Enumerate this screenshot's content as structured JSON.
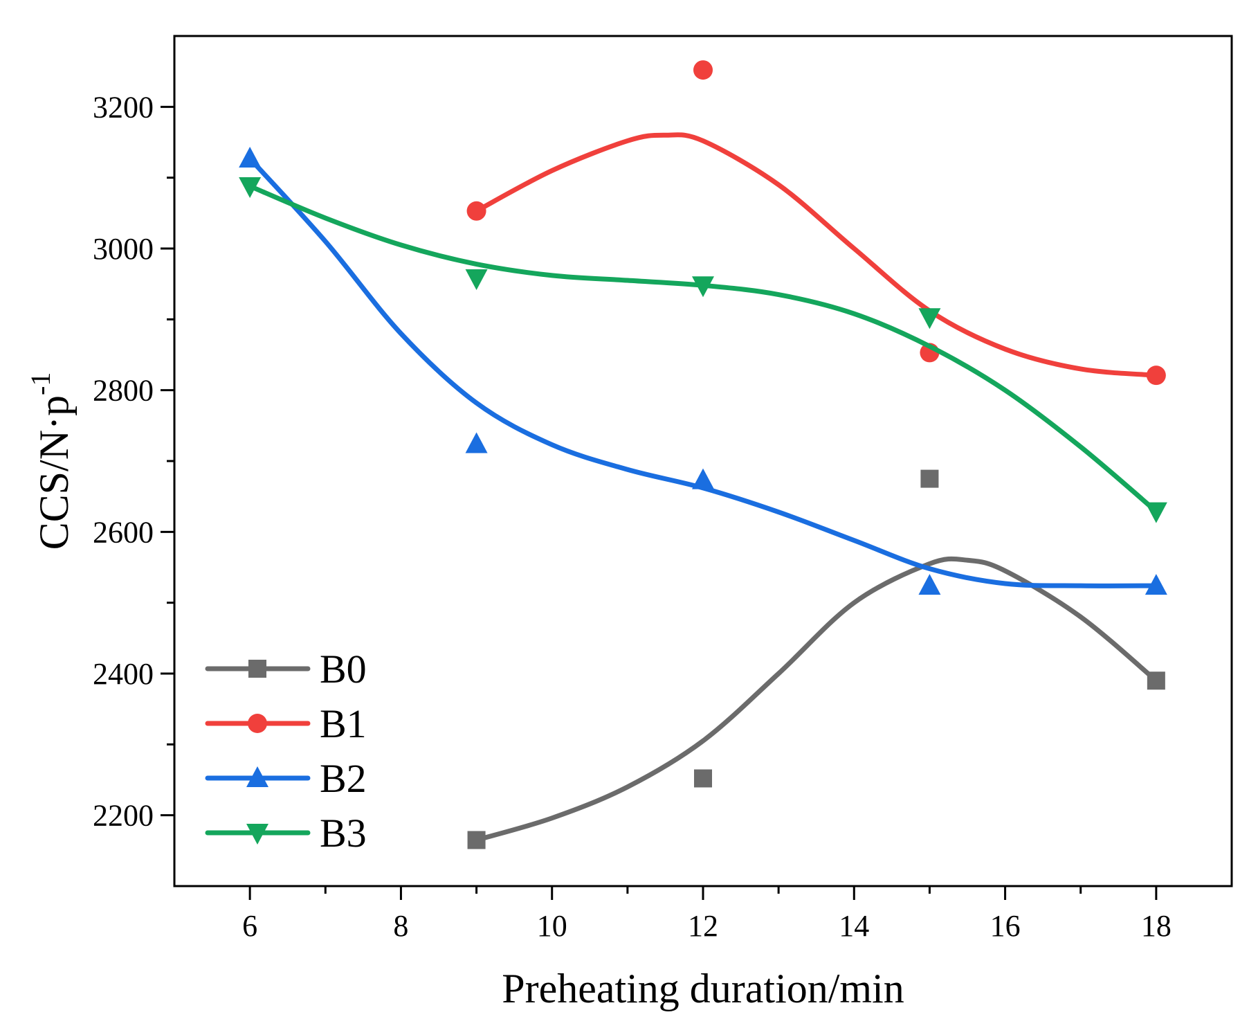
{
  "chart_data": {
    "type": "line",
    "title": "",
    "xlabel": "Preheating duration/min",
    "ylabel_main": "CCS/N·p",
    "ylabel_sup": "-1",
    "xlim": [
      5,
      19
    ],
    "ylim": [
      2100,
      3300
    ],
    "xticks": [
      6,
      8,
      10,
      12,
      14,
      16,
      18
    ],
    "yticks": [
      2200,
      2400,
      2600,
      2800,
      3000,
      3200
    ],
    "legend_position": "bottom-left",
    "series": [
      {
        "name": "B0",
        "color": "#6b6b6b",
        "marker": "square",
        "x": [
          9,
          12,
          15,
          18
        ],
        "y": [
          2165,
          2252,
          2675,
          2390
        ],
        "fit": [
          [
            9,
            2165
          ],
          [
            10,
            2196
          ],
          [
            11,
            2240
          ],
          [
            12,
            2305
          ],
          [
            13,
            2400
          ],
          [
            14,
            2500
          ],
          [
            15,
            2555
          ],
          [
            15.5,
            2560
          ],
          [
            16,
            2545
          ],
          [
            17,
            2480
          ],
          [
            18,
            2390
          ]
        ]
      },
      {
        "name": "B1",
        "color": "#f0403c",
        "marker": "circle",
        "x": [
          9,
          12,
          15,
          18
        ],
        "y": [
          3053,
          3252,
          2853,
          2821
        ],
        "fit": [
          [
            9,
            3053
          ],
          [
            10,
            3110
          ],
          [
            11,
            3152
          ],
          [
            11.5,
            3160
          ],
          [
            12,
            3152
          ],
          [
            13,
            3090
          ],
          [
            14,
            3000
          ],
          [
            15,
            2912
          ],
          [
            16,
            2858
          ],
          [
            17,
            2830
          ],
          [
            18,
            2821
          ]
        ]
      },
      {
        "name": "B2",
        "color": "#1a6ee0",
        "marker": "triangle-up",
        "x": [
          6,
          9,
          12,
          15,
          18
        ],
        "y": [
          3127,
          2724,
          2673,
          2524,
          2524
        ],
        "fit": [
          [
            6,
            3127
          ],
          [
            7,
            3010
          ],
          [
            8,
            2880
          ],
          [
            9,
            2782
          ],
          [
            10,
            2723
          ],
          [
            11,
            2688
          ],
          [
            12,
            2662
          ],
          [
            13,
            2628
          ],
          [
            14,
            2588
          ],
          [
            15,
            2548
          ],
          [
            16,
            2527
          ],
          [
            17,
            2524
          ],
          [
            18,
            2524
          ]
        ]
      },
      {
        "name": "B3",
        "color": "#14a65c",
        "marker": "triangle-down",
        "x": [
          6,
          9,
          12,
          15,
          18
        ],
        "y": [
          3088,
          2958,
          2948,
          2903,
          2629
        ],
        "fit": [
          [
            6,
            3088
          ],
          [
            7,
            3043
          ],
          [
            8,
            3005
          ],
          [
            9,
            2978
          ],
          [
            10,
            2962
          ],
          [
            11,
            2955
          ],
          [
            12,
            2948
          ],
          [
            13,
            2935
          ],
          [
            14,
            2908
          ],
          [
            15,
            2862
          ],
          [
            16,
            2800
          ],
          [
            17,
            2720
          ],
          [
            18,
            2629
          ]
        ]
      }
    ]
  }
}
